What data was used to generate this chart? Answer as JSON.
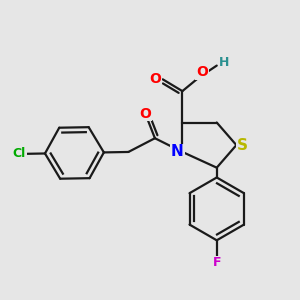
{
  "background_color": "#e6e6e6",
  "bond_color": "#1a1a1a",
  "bond_width": 1.6,
  "atom_colors": {
    "S": "#b8b800",
    "N": "#0000ff",
    "O": "#ff0000",
    "H": "#2a9090",
    "Cl": "#00aa00",
    "F": "#cc00cc"
  }
}
